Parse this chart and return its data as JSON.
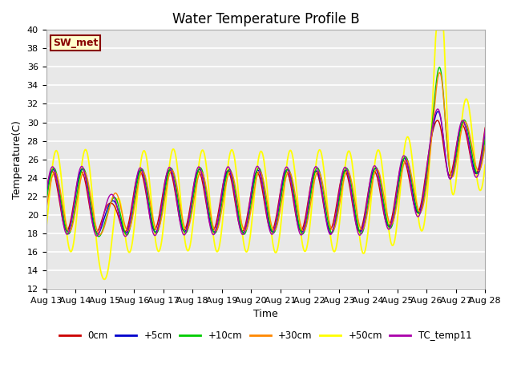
{
  "title": "Water Temperature Profile B",
  "xlabel": "Time",
  "ylabel": "Temperature(C)",
  "ylim": [
    12,
    40
  ],
  "yticks": [
    12,
    14,
    16,
    18,
    20,
    22,
    24,
    26,
    28,
    30,
    32,
    34,
    36,
    38,
    40
  ],
  "series": {
    "0cm": {
      "color": "#cc0000",
      "lw": 1.0
    },
    "+5cm": {
      "color": "#0000cc",
      "lw": 1.0
    },
    "+10cm": {
      "color": "#00cc00",
      "lw": 1.0
    },
    "+30cm": {
      "color": "#ff8800",
      "lw": 1.0
    },
    "+50cm": {
      "color": "#ffff00",
      "lw": 1.3
    },
    "TC_temp11": {
      "color": "#aa00aa",
      "lw": 1.0
    }
  },
  "sw_met_label": "SW_met",
  "sw_met_color": "#880000",
  "bg_color": "#e8e8e8",
  "grid_color": "#ffffff",
  "title_fontsize": 12,
  "label_fontsize": 9,
  "tick_fontsize": 8
}
